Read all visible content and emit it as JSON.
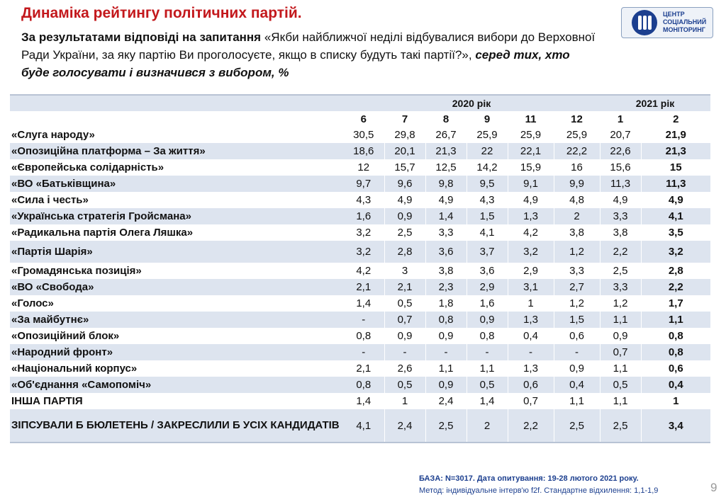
{
  "header": {
    "title": "Динаміка рейтингу політичних партій.",
    "question_lead": "За результатами відповіді на запитання",
    "question_text": " «Якби найближчої неділі відбувалися вибори до Верховної Ради України, за яку партію Ви проголосуєте, якщо в списку будуть такі партії?», ",
    "question_tail": "серед тих, хто буде голосувати і визначився з вибором, %"
  },
  "logo": {
    "line1": "ЦЕНТР",
    "line2": "СОЦІАЛЬНИЙ",
    "line3": "МОНІТОРИНГ"
  },
  "table": {
    "year_2020": "2020 рік",
    "year_2021": "2021 рік",
    "months": [
      "6",
      "7",
      "8",
      "9",
      "11",
      "12",
      "1",
      "2"
    ],
    "rows": [
      {
        "name": "«Слуга народу»",
        "values": [
          "30,5",
          "29,8",
          "26,7",
          "25,9",
          "25,9",
          "25,9",
          "20,7",
          "21,9"
        ]
      },
      {
        "name": "«Опозиційна платформа – За життя»",
        "values": [
          "18,6",
          "20,1",
          "21,3",
          "22",
          "22,1",
          "22,2",
          "22,6",
          "21,3"
        ]
      },
      {
        "name": "«Європейська солідарність»",
        "values": [
          "12",
          "15,7",
          "12,5",
          "14,2",
          "15,9",
          "16",
          "15,6",
          "15"
        ]
      },
      {
        "name": "«ВО «Батьківщина»",
        "values": [
          "9,7",
          "9,6",
          "9,8",
          "9,5",
          "9,1",
          "9,9",
          "11,3",
          "11,3"
        ]
      },
      {
        "name": "«Сила і честь»",
        "values": [
          "4,3",
          "4,9",
          "4,9",
          "4,3",
          "4,9",
          "4,8",
          "4,9",
          "4,9"
        ]
      },
      {
        "name": "«Українська стратегія Гройсмана»",
        "values": [
          "1,6",
          "0,9",
          "1,4",
          "1,5",
          "1,3",
          "2",
          "3,3",
          "4,1"
        ]
      },
      {
        "name": "«Радикальна партія Олега Ляшка»",
        "values": [
          "3,2",
          "2,5",
          "3,3",
          "4,1",
          "4,2",
          "3,8",
          "3,8",
          "3,5"
        ]
      },
      {
        "name": "«Партія Шарія»",
        "values": [
          "3,2",
          "2,8",
          "3,6",
          "3,7",
          "3,2",
          "1,2",
          "2,2",
          "3,2"
        ]
      },
      {
        "name": "«Громадянська позиція»",
        "values": [
          "4,2",
          "3",
          "3,8",
          "3,6",
          "2,9",
          "3,3",
          "2,5",
          "2,8"
        ]
      },
      {
        "name": "«ВО  «Свобода»",
        "values": [
          "2,1",
          "2,1",
          "2,3",
          "2,9",
          "3,1",
          "2,7",
          "3,3",
          "2,2"
        ]
      },
      {
        "name": "«Голос»",
        "values": [
          "1,4",
          "0,5",
          "1,8",
          "1,6",
          "1",
          "1,2",
          "1,2",
          "1,7"
        ]
      },
      {
        "name": "«За майбутнє»",
        "values": [
          "-",
          "0,7",
          "0,8",
          "0,9",
          "1,3",
          "1,5",
          "1,1",
          "1,1"
        ]
      },
      {
        "name": "«Опозиційний блок»",
        "values": [
          "0,8",
          "0,9",
          "0,9",
          "0,8",
          "0,4",
          "0,6",
          "0,9",
          "0,8"
        ]
      },
      {
        "name": "«Народний фронт»",
        "values": [
          "-",
          "-",
          "-",
          "-",
          "-",
          "-",
          "0,7",
          "0,8"
        ]
      },
      {
        "name": "«Національний корпус»",
        "values": [
          "2,1",
          "2,6",
          "1,1",
          "1,1",
          "1,3",
          "0,9",
          "1,1",
          "0,6"
        ]
      },
      {
        "name": "«Об'єднання «Самопоміч»",
        "values": [
          "0,8",
          "0,5",
          "0,9",
          "0,5",
          "0,6",
          "0,4",
          "0,5",
          "0,4"
        ]
      },
      {
        "name": "ІНША ПАРТІЯ",
        "values": [
          "1,4",
          "1",
          "2,4",
          "1,4",
          "0,7",
          "1,1",
          "1,1",
          "1"
        ]
      },
      {
        "name": "ЗІПСУВАЛИ Б БЮЛЕТЕНЬ / ЗАКРЕСЛИЛИ Б УСІХ КАНДИДАТІВ",
        "values": [
          "4,1",
          "2,4",
          "2,5",
          "2",
          "2,2",
          "2,5",
          "2,5",
          "3,4"
        ]
      }
    ]
  },
  "footer": {
    "base": "БАЗА: N=3017. Дата опитування: 19-28 лютого 2021 року.",
    "method": "Метод: індивідуальне інтерв'ю f2f. Стандартне відхилення: 1,1-1,9",
    "page_number": "9"
  },
  "colors": {
    "title_red": "#c3181c",
    "stripe": "#dde4ef",
    "footer_blue": "#1c3f8f"
  }
}
